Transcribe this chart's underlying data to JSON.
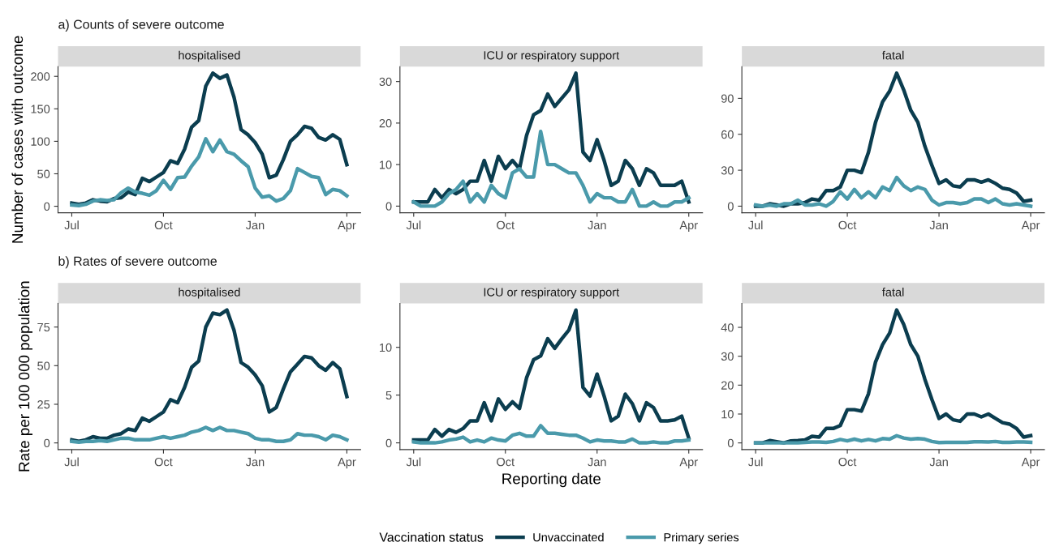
{
  "chart_data": [
    {
      "type": "line",
      "title": "hospitalised",
      "ylabel": "Number of cases with outcome",
      "annotations": [
        "a) Counts of severe outcome"
      ],
      "line_style": "solid",
      "marker": "none",
      "grid": false,
      "legend": false,
      "categories": [
        "Jul",
        null,
        null,
        null,
        null,
        null,
        null,
        null,
        null,
        null,
        null,
        null,
        null,
        "Oct",
        null,
        null,
        null,
        null,
        null,
        null,
        null,
        null,
        null,
        null,
        null,
        null,
        "Jan",
        null,
        null,
        null,
        null,
        null,
        null,
        null,
        null,
        null,
        null,
        null,
        null,
        "Apr"
      ],
      "ylim": [
        -10,
        215
      ],
      "yticks": [
        0,
        50,
        100,
        150,
        200
      ],
      "series": [
        {
          "color": "#0b3d4f",
          "values": [
            5,
            3,
            5,
            10,
            8,
            7,
            12,
            13,
            22,
            18,
            43,
            38,
            45,
            52,
            70,
            66,
            88,
            122,
            132,
            185,
            205,
            197,
            202,
            168,
            118,
            110,
            98,
            80,
            44,
            48,
            72,
            100,
            110,
            123,
            120,
            106,
            102,
            110,
            103,
            64
          ]
        },
        {
          "color": "#4a9aab",
          "values": [
            2,
            1,
            3,
            8,
            10,
            9,
            10,
            21,
            28,
            22,
            20,
            17,
            24,
            40,
            26,
            44,
            45,
            62,
            76,
            104,
            84,
            102,
            84,
            80,
            70,
            61,
            28,
            14,
            16,
            8,
            12,
            24,
            58,
            52,
            46,
            44,
            18,
            26,
            24,
            16
          ]
        }
      ]
    },
    {
      "type": "line",
      "title": "ICU or respiratory support",
      "line_style": "solid",
      "marker": "none",
      "grid": false,
      "legend": false,
      "categories": [
        "Jul",
        null,
        null,
        null,
        null,
        null,
        null,
        null,
        null,
        null,
        null,
        null,
        null,
        "Oct",
        null,
        null,
        null,
        null,
        null,
        null,
        null,
        null,
        null,
        null,
        null,
        null,
        "Jan",
        null,
        null,
        null,
        null,
        null,
        null,
        null,
        null,
        null,
        null,
        null,
        null,
        "Apr"
      ],
      "ylim": [
        -1.6,
        33.6
      ],
      "yticks": [
        0,
        10,
        20,
        30
      ],
      "series": [
        {
          "color": "#0b3d4f",
          "values": [
            1,
            1,
            1,
            4,
            2,
            4,
            3,
            4,
            6,
            6,
            11,
            6,
            12,
            9,
            11,
            9,
            17,
            22,
            23,
            27,
            24,
            26,
            28,
            32,
            13,
            11,
            16,
            11,
            5,
            6,
            11,
            9,
            5,
            9,
            8,
            5,
            5,
            5,
            6,
            1
          ]
        },
        {
          "color": "#4a9aab",
          "values": [
            1,
            0,
            0,
            0,
            1,
            3,
            4,
            6,
            1,
            3,
            1,
            5,
            3,
            2,
            8,
            9,
            7,
            7,
            18,
            10,
            10,
            9,
            8,
            8,
            5,
            1,
            3,
            2,
            2,
            1,
            1,
            4,
            0,
            0,
            1,
            0,
            0,
            1,
            1,
            2
          ]
        }
      ]
    },
    {
      "type": "line",
      "title": "fatal",
      "line_style": "solid",
      "marker": "none",
      "grid": false,
      "legend": false,
      "categories": [
        "Jul",
        null,
        null,
        null,
        null,
        null,
        null,
        null,
        null,
        null,
        null,
        null,
        null,
        "Oct",
        null,
        null,
        null,
        null,
        null,
        null,
        null,
        null,
        null,
        null,
        null,
        null,
        "Jan",
        null,
        null,
        null,
        null,
        null,
        null,
        null,
        null,
        null,
        null,
        null,
        null,
        "Apr"
      ],
      "ylim": [
        -5.5,
        116.5
      ],
      "yticks": [
        0,
        30,
        60,
        90
      ],
      "series": [
        {
          "color": "#0b3d4f",
          "values": [
            0,
            0,
            2,
            1,
            0,
            2,
            2,
            3,
            6,
            5,
            13,
            13,
            16,
            30,
            30,
            28,
            45,
            70,
            87,
            96,
            111,
            97,
            80,
            70,
            50,
            34,
            19,
            22,
            17,
            16,
            22,
            22,
            20,
            22,
            19,
            15,
            14,
            11,
            4,
            5
          ]
        },
        {
          "color": "#4a9aab",
          "values": [
            1,
            0,
            1,
            0,
            2,
            2,
            5,
            1,
            1,
            2,
            0,
            4,
            12,
            6,
            14,
            7,
            12,
            7,
            16,
            13,
            24,
            17,
            13,
            16,
            14,
            5,
            1,
            3,
            3,
            2,
            3,
            6,
            6,
            3,
            6,
            2,
            1,
            2,
            1,
            0
          ]
        }
      ]
    },
    {
      "type": "line",
      "title": "hospitalised",
      "ylabel": "Rate per 100 000 population",
      "annotations": [
        "b) Rates of severe outcome"
      ],
      "line_style": "solid",
      "marker": "none",
      "grid": false,
      "legend": false,
      "categories": [
        "Jul",
        null,
        null,
        null,
        null,
        null,
        null,
        null,
        null,
        null,
        null,
        null,
        null,
        "Oct",
        null,
        null,
        null,
        null,
        null,
        null,
        null,
        null,
        null,
        null,
        null,
        null,
        "Jan",
        null,
        null,
        null,
        null,
        null,
        null,
        null,
        null,
        null,
        null,
        null,
        null,
        "Apr"
      ],
      "ylim": [
        -4.3,
        90.3
      ],
      "yticks": [
        0,
        25,
        50,
        75
      ],
      "series": [
        {
          "color": "#0b3d4f",
          "values": [
            2,
            1,
            2,
            4,
            3,
            3,
            5,
            6,
            9,
            8,
            16,
            14,
            17,
            20,
            28,
            26,
            36,
            49,
            53,
            75,
            84,
            83,
            86,
            73,
            52,
            49,
            44,
            37,
            20,
            23,
            35,
            46,
            51,
            56,
            55,
            50,
            47,
            52,
            48,
            30
          ]
        },
        {
          "color": "#4a9aab",
          "values": [
            1,
            0.5,
            1,
            1,
            1.5,
            1,
            2,
            3,
            3,
            2,
            2,
            2,
            3,
            4,
            3,
            4,
            5,
            7,
            8,
            10,
            8,
            10,
            8,
            8,
            7,
            6,
            3,
            2,
            2,
            1,
            1,
            2,
            6,
            5,
            5,
            4,
            2,
            5,
            4,
            2
          ]
        }
      ]
    },
    {
      "type": "line",
      "title": "ICU or respiratory support",
      "xlabel": "Reporting date",
      "legend_title": "Vaccination status",
      "legend": "bottom",
      "line_style": "solid",
      "marker": "none",
      "grid": false,
      "categories": [
        "Jul",
        null,
        null,
        null,
        null,
        null,
        null,
        null,
        null,
        null,
        null,
        null,
        null,
        "Oct",
        null,
        null,
        null,
        null,
        null,
        null,
        null,
        null,
        null,
        null,
        null,
        null,
        "Jan",
        null,
        null,
        null,
        null,
        null,
        null,
        null,
        null,
        null,
        null,
        null,
        null,
        "Apr"
      ],
      "ylim": [
        -0.7,
        14.6
      ],
      "yticks": [
        0,
        5,
        10
      ],
      "series": [
        {
          "name": "Unvaccinated",
          "color": "#0b3d4f",
          "values": [
            0.3,
            0.3,
            0.3,
            1.4,
            0.7,
            1.4,
            1.1,
            1.5,
            2.3,
            2.3,
            4.2,
            2.3,
            4.6,
            3.5,
            4.3,
            3.6,
            6.8,
            8.7,
            9.1,
            10.9,
            9.9,
            10.9,
            11.8,
            13.9,
            5.8,
            4.9,
            7.2,
            4.9,
            2.3,
            2.8,
            5.1,
            4.1,
            2.3,
            4.2,
            3.7,
            2.3,
            2.3,
            2.4,
            2.8,
            0.5
          ]
        },
        {
          "name": "Primary series",
          "color": "#4a9aab",
          "values": [
            0.1,
            0,
            0,
            0,
            0.1,
            0.3,
            0.4,
            0.6,
            0.1,
            0.3,
            0.1,
            0.5,
            0.3,
            0.2,
            0.8,
            1.0,
            0.7,
            0.7,
            1.8,
            1.0,
            1.0,
            0.9,
            0.8,
            0.8,
            0.5,
            0.1,
            0.3,
            0.2,
            0.2,
            0.1,
            0.1,
            0.4,
            0,
            0,
            0.1,
            0,
            0,
            0.2,
            0.2,
            0.3
          ]
        }
      ]
    },
    {
      "type": "line",
      "title": "fatal",
      "line_style": "solid",
      "marker": "none",
      "grid": false,
      "legend": false,
      "categories": [
        "Jul",
        null,
        null,
        null,
        null,
        null,
        null,
        null,
        null,
        null,
        null,
        null,
        null,
        "Oct",
        null,
        null,
        null,
        null,
        null,
        null,
        null,
        null,
        null,
        null,
        null,
        null,
        "Jan",
        null,
        null,
        null,
        null,
        null,
        null,
        null,
        null,
        null,
        null,
        null,
        null,
        "Apr"
      ],
      "ylim": [
        -2.3,
        48.3
      ],
      "yticks": [
        0,
        10,
        20,
        30,
        40
      ],
      "series": [
        {
          "color": "#0b3d4f",
          "values": [
            0,
            0,
            0.8,
            0.4,
            0,
            0.7,
            0.8,
            1,
            2.3,
            2,
            5,
            5,
            6,
            11.5,
            11.5,
            11,
            17,
            28,
            34,
            38,
            46,
            41,
            34,
            30,
            22,
            15,
            8.5,
            10,
            8,
            7.5,
            10,
            10,
            9,
            10,
            8.5,
            7,
            6.5,
            5,
            2,
            2.5
          ]
        },
        {
          "color": "#4a9aab",
          "values": [
            0,
            0,
            0,
            0,
            0,
            0,
            0,
            0.2,
            0.3,
            0.3,
            0.2,
            0.5,
            1.2,
            0.7,
            1.3,
            0.7,
            1.2,
            0.7,
            1.5,
            1.3,
            2.5,
            1.7,
            1.3,
            1.5,
            1.3,
            0.5,
            0.1,
            0.2,
            0.2,
            0.2,
            0.2,
            0.4,
            0.4,
            0.3,
            0.5,
            0.2,
            0.2,
            0.3,
            0.3,
            0.2
          ]
        }
      ]
    }
  ]
}
